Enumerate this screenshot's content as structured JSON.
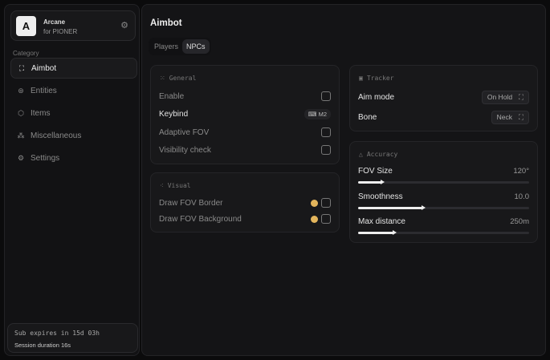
{
  "sidebar": {
    "app_name": "Arcane",
    "app_sub": "for PIONER",
    "logo_letter": "A",
    "category_label": "Category",
    "items": [
      {
        "label": "Aimbot",
        "icon": "crosshair-icon"
      },
      {
        "label": "Entities",
        "icon": "entities-icon"
      },
      {
        "label": "Items",
        "icon": "box-icon"
      },
      {
        "label": "Miscellaneous",
        "icon": "grid-icon"
      },
      {
        "label": "Settings",
        "icon": "gear-icon"
      }
    ],
    "active": "Aimbot",
    "sub_expires": "Sub expires in 15d 03h",
    "session": "Session duration 16s"
  },
  "main": {
    "title": "Aimbot",
    "tabs": [
      {
        "label": "Players"
      },
      {
        "label": "NPCs"
      }
    ],
    "active_tab": "NPCs",
    "general": {
      "header": "General",
      "enable": "Enable",
      "keybind": "Keybind",
      "keybind_value": "M2",
      "adaptive": "Adaptive FOV",
      "visibility": "Visibility check"
    },
    "visual": {
      "header": "Visual",
      "border": "Draw FOV Border",
      "background": "Draw FOV Background",
      "color": "#e3b55c"
    },
    "tracker": {
      "header": "Tracker",
      "aim_mode": "Aim mode",
      "aim_mode_value": "On Hold",
      "bone": "Bone",
      "bone_value": "Neck"
    },
    "accuracy": {
      "header": "Accuracy",
      "sliders": [
        {
          "label": "FOV Size",
          "value": "120°",
          "fraction": 0.14
        },
        {
          "label": "Smoothness",
          "value": "10.0",
          "fraction": 0.38
        },
        {
          "label": "Max distance",
          "value": "250m",
          "fraction": 0.21
        }
      ]
    }
  }
}
